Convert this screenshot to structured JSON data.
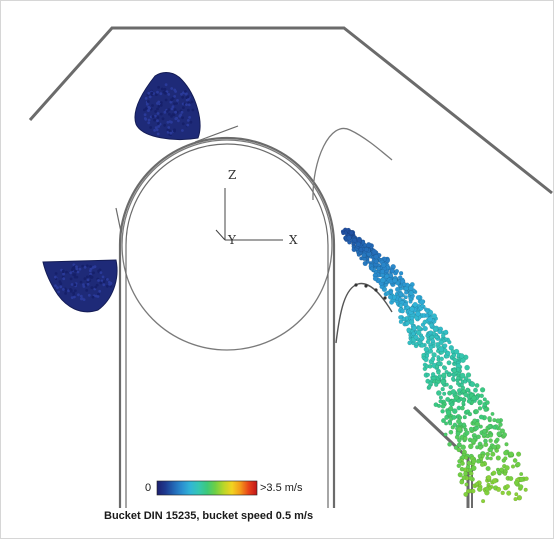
{
  "axes": {
    "z": "Z",
    "y": "Y",
    "x": "X"
  },
  "colorbar": {
    "min_label": "0",
    "max_label": ">3.5 m/s",
    "stops": [
      "#1d1f6e",
      "#1e3a8f",
      "#2366b4",
      "#2b8fd0",
      "#31b5d6",
      "#35c7b2",
      "#3cc97a",
      "#6fcf45",
      "#b9d629",
      "#f2d320",
      "#f39a1a",
      "#e8421a",
      "#c0161a"
    ]
  },
  "caption": "Bucket DIN 15235, bucket speed 0.5 m/s",
  "colors": {
    "structure": "#6b6b6b",
    "bucket": "#1e2a78",
    "particles_fast": "#56c23c",
    "particles_slow": "#2f6fd0"
  }
}
